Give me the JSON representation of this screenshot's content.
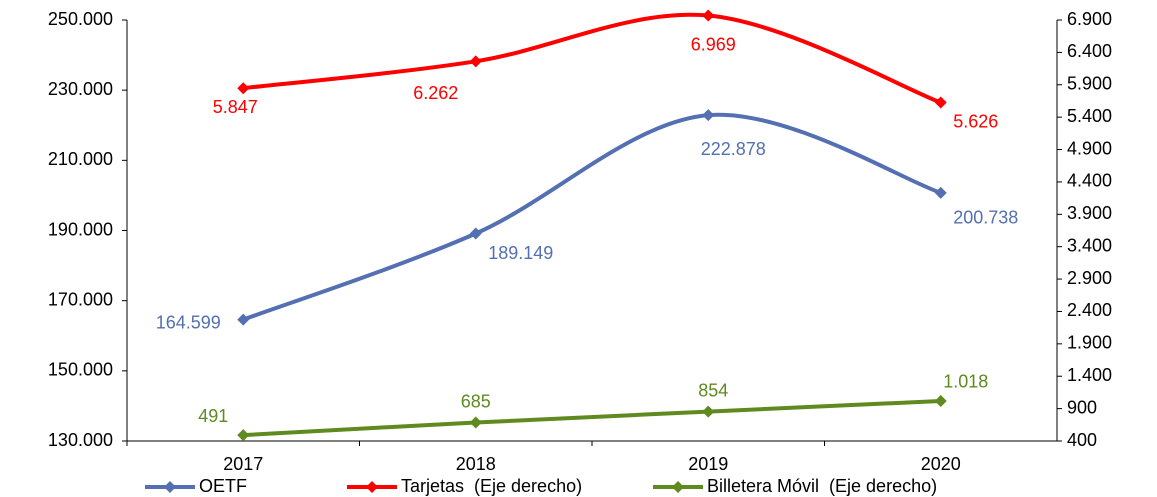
{
  "chart_data": {
    "type": "line",
    "categories": [
      "2017",
      "2018",
      "2019",
      "2020"
    ],
    "series": [
      {
        "name": "OETF",
        "color": "#5470b2",
        "values": [
          164599,
          189149,
          222878,
          200738
        ],
        "value_labels": [
          "164.599",
          "189.149",
          "222.878",
          "200.738"
        ]
      },
      {
        "name": "Tarjetas  (Eje derecho)",
        "color": "#ff0000",
        "axis": "y2",
        "values": [
          5847,
          6262,
          6969,
          5626
        ],
        "value_labels": [
          "5.847",
          "6.262",
          "6.969",
          "5.626"
        ]
      },
      {
        "name": "Billetera Móvil  (Eje derecho)",
        "color": "#5f8a1f",
        "axis": "y2",
        "values": [
          491,
          685,
          854,
          1018
        ],
        "value_labels": [
          "491",
          "685",
          "854",
          "1.018"
        ]
      }
    ],
    "ylim": [
      130000,
      250000
    ],
    "yticks": [
      {
        "value": 130000,
        "label": "130.000"
      },
      {
        "value": 150000,
        "label": "150.000"
      },
      {
        "value": 170000,
        "label": "170.000"
      },
      {
        "value": 190000,
        "label": "190.000"
      },
      {
        "value": 210000,
        "label": "210.000"
      },
      {
        "value": 230000,
        "label": "230.000"
      },
      {
        "value": 250000,
        "label": "250.000"
      }
    ],
    "y2lim": [
      400,
      6900
    ],
    "y2ticks": [
      400,
      900,
      {
        "value": 1400,
        "label": "1.400"
      },
      {
        "value": 1900,
        "label": "1.900"
      },
      {
        "value": 2400,
        "label": "2.400"
      },
      {
        "value": 2900,
        "label": "2.900"
      },
      {
        "value": 3400,
        "label": "3.400"
      },
      {
        "value": 3900,
        "label": "3.900"
      },
      {
        "value": 4400,
        "label": "4.400"
      },
      {
        "value": 4900,
        "label": "4.900"
      },
      {
        "value": 5400,
        "label": "5.400"
      },
      {
        "value": 5900,
        "label": "5.900"
      },
      {
        "value": 6400,
        "label": "6.400"
      },
      {
        "value": 6900,
        "label": "6.900"
      }
    ],
    "grid": false,
    "legend": "bottom"
  }
}
